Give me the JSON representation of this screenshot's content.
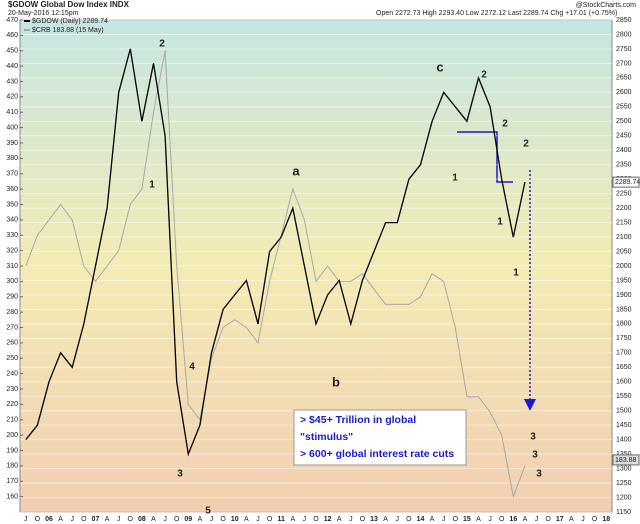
{
  "chart_data": {
    "type": "line",
    "title": "$GDOW Global Dow Index INDX",
    "subtitle": "20-May-2016 12:15pm",
    "source": "@StockCharts.com",
    "quote": "Open 2272.73  High 2293.40  Low 2272.12  Last 2289.74  Chg +17.01 (+0.75%)",
    "categories": [
      "J",
      "O",
      "06",
      "A",
      "J",
      "O",
      "07",
      "A",
      "J",
      "O",
      "08",
      "A",
      "J",
      "O",
      "09",
      "A",
      "J",
      "O",
      "10",
      "A",
      "J",
      "O",
      "11",
      "A",
      "J",
      "O",
      "12",
      "A",
      "J",
      "O",
      "13",
      "A",
      "J",
      "O",
      "14",
      "A",
      "J",
      "O",
      "15",
      "A",
      "J",
      "O",
      "16",
      "A",
      "J",
      "O",
      "17",
      "A",
      "J",
      "O",
      "18"
    ],
    "series": [
      {
        "name": "$GDOW (Daily) 2289.74",
        "color": "#000000",
        "axis": "y2",
        "last": 2289.74,
        "values": [
          1400,
          1450,
          1600,
          1700,
          1650,
          1800,
          2000,
          2200,
          2600,
          2750,
          2500,
          2700,
          2450,
          1600,
          1350,
          1450,
          1700,
          1850,
          1900,
          1950,
          1800,
          2050,
          2100,
          2200,
          2000,
          1800,
          1900,
          1950,
          1800,
          1950,
          2050,
          2150,
          2150,
          2300,
          2350,
          2500,
          2600,
          2550,
          2500,
          2650,
          2550,
          2300,
          2100,
          2290,
          null,
          null,
          null,
          null,
          null,
          null,
          null
        ]
      },
      {
        "name": "$CRB 183.88 (15 May)",
        "color": "#a8a8a8",
        "axis": "y",
        "last": 183.88,
        "values": [
          310,
          330,
          340,
          350,
          340,
          310,
          300,
          310,
          320,
          350,
          360,
          410,
          450,
          310,
          220,
          210,
          250,
          270,
          275,
          270,
          260,
          300,
          330,
          360,
          340,
          300,
          310,
          300,
          300,
          305,
          295,
          285,
          285,
          285,
          290,
          305,
          300,
          270,
          225,
          225,
          215,
          200,
          160,
          180,
          null,
          null,
          null,
          null,
          null,
          null,
          null
        ]
      }
    ],
    "ylim": [
      150,
      470
    ],
    "yticks": [
      160,
      170,
      180,
      190,
      200,
      210,
      220,
      230,
      240,
      250,
      260,
      270,
      280,
      290,
      300,
      310,
      320,
      330,
      340,
      350,
      360,
      370,
      380,
      390,
      400,
      410,
      420,
      430,
      440,
      450,
      460,
      470
    ],
    "y2lim": [
      1150,
      2850
    ],
    "y2ticks": [
      1150,
      1200,
      1250,
      1300,
      1350,
      1400,
      1450,
      1500,
      1550,
      1600,
      1650,
      1700,
      1750,
      1800,
      1850,
      1900,
      1950,
      2000,
      2050,
      2100,
      2150,
      2200,
      2250,
      2300,
      2350,
      2400,
      2450,
      2500,
      2550,
      2600,
      2650,
      2700,
      2750,
      2800,
      2850
    ],
    "grid": true,
    "annotations": [
      {
        "text": "2",
        "color": "#1a1acc"
      },
      {
        "text": "1",
        "color": "#1a1acc"
      },
      {
        "text": "4",
        "color": "#1a1acc"
      },
      {
        "text": "3",
        "color": "#1a1acc"
      },
      {
        "text": "5",
        "color": "#1a1acc"
      },
      {
        "text": "a",
        "color": "#1a1acc"
      },
      {
        "text": "b",
        "color": "#1a1acc"
      },
      {
        "text": "c",
        "color": "#1a1acc"
      },
      {
        "text": "2",
        "color": "#1a1acc"
      },
      {
        "text": "1",
        "color": "#1a1acc"
      },
      {
        "text": "2",
        "color": "#dd2222"
      },
      {
        "text": "1",
        "color": "#dd2222"
      },
      {
        "text": "2",
        "color": "#33aa33"
      },
      {
        "text": "1",
        "color": "#33aa33"
      },
      {
        "text": "3",
        "color": "#33aa33"
      },
      {
        "text": "3",
        "color": "#dd2222"
      },
      {
        "text": "3",
        "color": "#1a1acc"
      }
    ],
    "note_lines": [
      "> $45+ Trillion in global",
      "\"stimulus\"",
      "> 600+ global interest rate cuts"
    ]
  }
}
